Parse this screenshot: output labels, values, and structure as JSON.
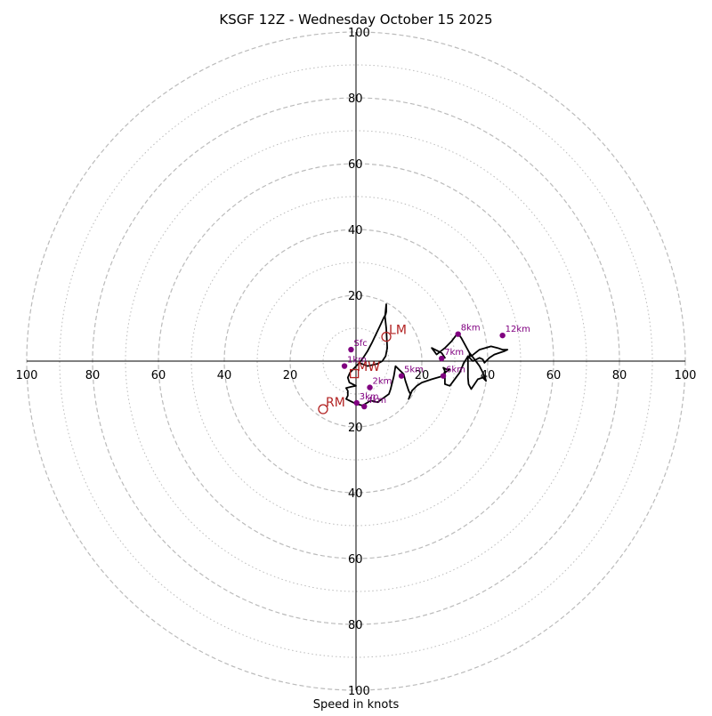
{
  "chart_data": {
    "type": "hodograph",
    "title": "KSGF 12Z - Wednesday October 15 2025",
    "xlabel": "Speed in knots",
    "units": "knots",
    "rmax": 100,
    "major_rings": [
      20,
      40,
      60,
      80,
      100
    ],
    "minor_rings": [
      10,
      30,
      50,
      70,
      90
    ],
    "x_tick_labels": [
      "100",
      "80",
      "60",
      "40",
      "20",
      "20",
      "40",
      "60",
      "80",
      "100"
    ],
    "y_tick_labels": [
      "100",
      "80",
      "60",
      "40",
      "20",
      "20",
      "40",
      "60",
      "80",
      "100"
    ],
    "grid": true,
    "colors": {
      "trace": "#000000",
      "height_markers": "#800080",
      "storm_motion": "#b22222",
      "grid": "#bbbbbb",
      "axes": "#000000"
    },
    "trace": [
      [
        1,
        -0.5
      ],
      [
        1.4,
        0
      ],
      [
        2.2,
        1
      ],
      [
        3.5,
        3
      ],
      [
        4.8,
        5.5
      ],
      [
        6,
        8
      ],
      [
        7.2,
        10.5
      ],
      [
        8.5,
        13.3
      ],
      [
        9,
        14.2
      ],
      [
        9.2,
        15
      ],
      [
        9.2,
        17.2
      ],
      [
        9.2,
        17.3
      ],
      [
        8.8,
        13.5
      ],
      [
        9.2,
        10
      ],
      [
        9.5,
        4
      ],
      [
        9,
        1.5
      ],
      [
        8,
        0
      ],
      [
        6.5,
        -0.8
      ],
      [
        3.5,
        -1.5
      ],
      [
        1,
        -0.5
      ],
      [
        -1.8,
        -3.5
      ],
      [
        -2.5,
        -5
      ],
      [
        -2,
        -6.5
      ],
      [
        0,
        -7.5
      ],
      [
        -1.5,
        -7.8
      ],
      [
        -3,
        -8.2
      ],
      [
        -2.5,
        -9
      ],
      [
        -2.5,
        -10.5
      ],
      [
        -3,
        -11.5
      ],
      [
        0,
        -13
      ],
      [
        2,
        -13.5
      ],
      [
        4.5,
        -12
      ],
      [
        6.5,
        -12.5
      ],
      [
        10,
        -10
      ],
      [
        10.5,
        -8.5
      ],
      [
        11.5,
        -4.5
      ],
      [
        12,
        -1.5
      ],
      [
        14,
        -3.5
      ],
      [
        14.5,
        -4
      ],
      [
        15,
        -6
      ],
      [
        16,
        -9
      ],
      [
        16.5,
        -10
      ],
      [
        16,
        -11.5
      ],
      [
        17,
        -9
      ],
      [
        18.5,
        -7.5
      ],
      [
        20,
        -6.5
      ],
      [
        23,
        -5.5
      ],
      [
        26.5,
        -4.5
      ],
      [
        27,
        -3
      ],
      [
        26.5,
        -2
      ],
      [
        27.5,
        -2.5
      ],
      [
        28.5,
        -2.5
      ],
      [
        27,
        -3.5
      ],
      [
        27,
        -5
      ],
      [
        27,
        -7
      ],
      [
        28.5,
        -7.5
      ],
      [
        31.5,
        -3.5
      ],
      [
        33,
        0
      ],
      [
        32.5,
        -1
      ],
      [
        34,
        1.5
      ],
      [
        34,
        -5
      ],
      [
        34.2,
        -7
      ],
      [
        35,
        -8.5
      ],
      [
        36,
        -7
      ],
      [
        37,
        -5.5
      ],
      [
        38.5,
        -5
      ],
      [
        39.5,
        -6
      ],
      [
        38.5,
        -3.5
      ],
      [
        37.5,
        -1.5
      ],
      [
        36,
        0.5
      ],
      [
        34.5,
        2.5
      ],
      [
        34.5,
        1
      ],
      [
        35.5,
        0
      ],
      [
        37.5,
        1
      ],
      [
        38.5,
        0.5
      ],
      [
        39,
        -0.5
      ],
      [
        40.5,
        1
      ],
      [
        42,
        2
      ],
      [
        45,
        3
      ],
      [
        46,
        3.5
      ],
      [
        44.5,
        3.5
      ],
      [
        43,
        4
      ],
      [
        41,
        4.5
      ],
      [
        37.5,
        3.5
      ],
      [
        35,
        1.5
      ],
      [
        32,
        7
      ],
      [
        31,
        8.5
      ],
      [
        30.5,
        8
      ],
      [
        29,
        6
      ],
      [
        27,
        4
      ],
      [
        24.5,
        2
      ],
      [
        23,
        4
      ],
      [
        26,
        2.5
      ],
      [
        27,
        1
      ]
    ],
    "height_markers": [
      {
        "label": "Sfc",
        "u": -1.5,
        "v": 3.5
      },
      {
        "label": "1km",
        "u": -3.5,
        "v": -1.5
      },
      {
        "label": "2km",
        "u": 4.2,
        "v": -8
      },
      {
        "label": "3km",
        "u": 0.2,
        "v": -12.7
      },
      {
        "label": "4km",
        "u": 2.5,
        "v": -13.8
      },
      {
        "label": "5km",
        "u": 13.8,
        "v": -4.5
      },
      {
        "label": "6km",
        "u": 26.5,
        "v": -4.5
      },
      {
        "label": "7km",
        "u": 26.0,
        "v": 0.8
      },
      {
        "label": "8km",
        "u": 31.0,
        "v": 8.2
      },
      {
        "label": "12km",
        "u": 44.5,
        "v": 7.8
      }
    ],
    "storm_motion": [
      {
        "label": "LM",
        "marker": "circle",
        "u": 9.2,
        "v": 7.4
      },
      {
        "label": "MW",
        "marker": "square",
        "u": -0.5,
        "v": -3.8
      },
      {
        "label": "RM",
        "marker": "circle",
        "u": -10.0,
        "v": -14.6
      }
    ]
  }
}
